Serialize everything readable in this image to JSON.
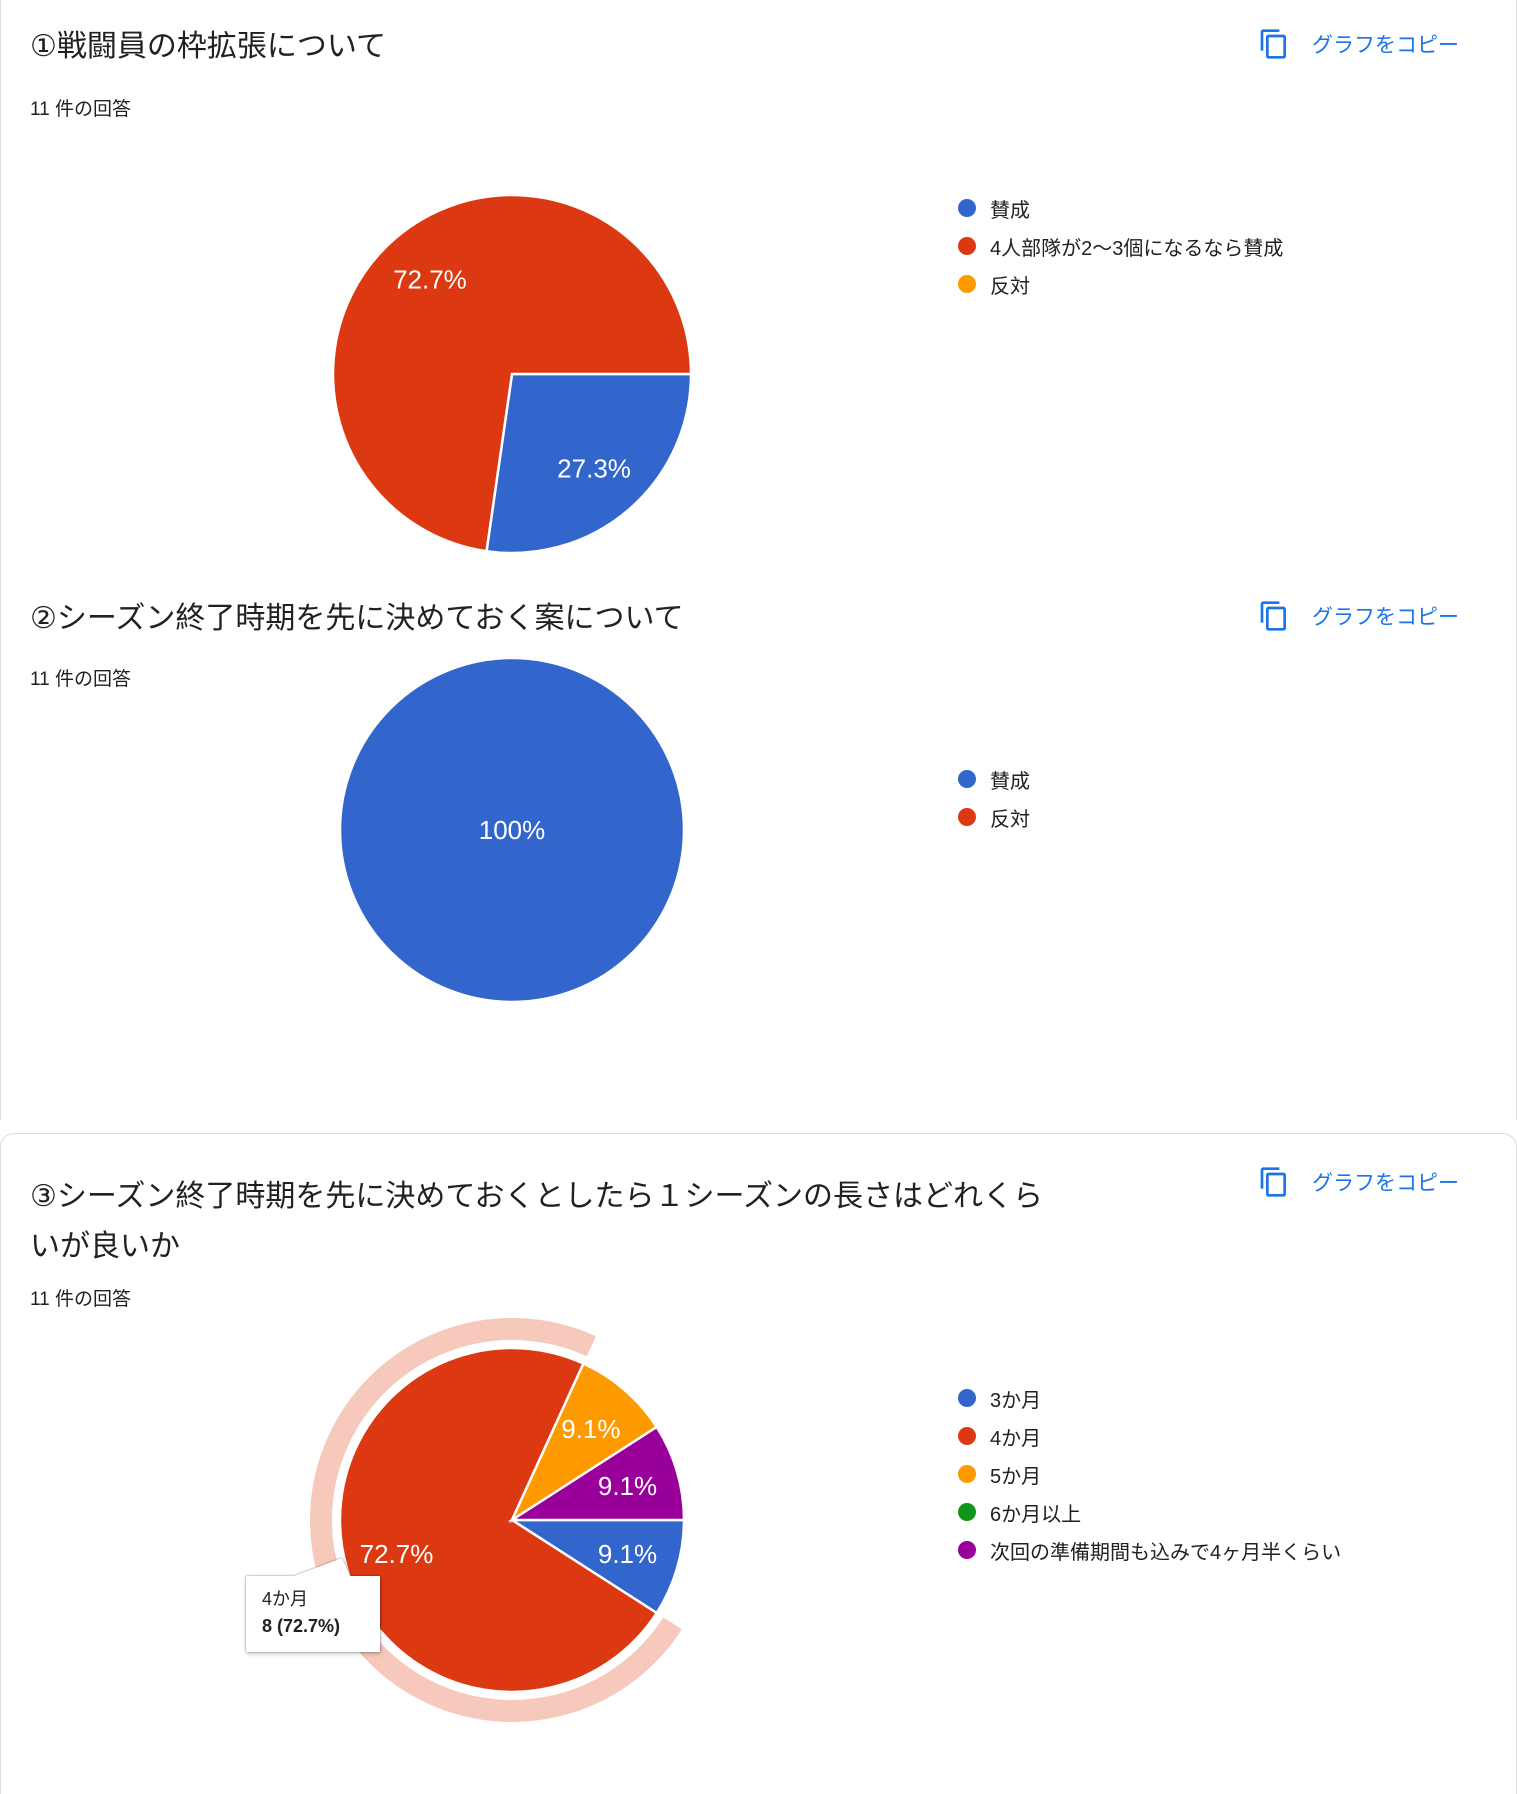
{
  "copy_button": {
    "label": "グラフをコピー",
    "color": "#1a73e8"
  },
  "palette": {
    "blue": "#3366CC",
    "red": "#DC3912",
    "orange": "#FF9900",
    "green": "#109618",
    "purple": "#990099"
  },
  "sections": [
    {
      "title": "①戦闘員の枠拡張について",
      "responses": "11 件の回答"
    },
    {
      "title": "②シーズン終了時期を先に決めておく案について",
      "responses": "11 件の回答"
    },
    {
      "title": "③シーズン終了時期を先に決めておくとしたら１シーズンの長さはどれくらいが良いか",
      "responses": "11 件の回答"
    }
  ],
  "chart_data": [
    {
      "type": "pie",
      "title": "①戦闘員の枠拡張について",
      "subtitle": "11 件の回答",
      "total_responses": 11,
      "categories": [
        "賛成",
        "4人部隊が2〜3個になるなら賛成",
        "反対"
      ],
      "values": [
        3,
        8,
        0
      ],
      "percent_labels": [
        "27.3%",
        "72.7%",
        ""
      ],
      "colors": [
        "#3366CC",
        "#DC3912",
        "#FF9900"
      ],
      "start_angle_deg": 0,
      "direction": "clockwise",
      "legend_position": "right"
    },
    {
      "type": "pie",
      "title": "②シーズン終了時期を先に決めておく案について",
      "subtitle": "11 件の回答",
      "total_responses": 11,
      "categories": [
        "賛成",
        "反対"
      ],
      "values": [
        11,
        0
      ],
      "percent_labels": [
        "100%",
        ""
      ],
      "colors": [
        "#3366CC",
        "#DC3912"
      ],
      "start_angle_deg": 0,
      "direction": "clockwise",
      "legend_position": "right"
    },
    {
      "type": "pie",
      "title": "③シーズン終了時期を先に決めておくとしたら１シーズンの長さはどれくらいが良いか",
      "subtitle": "11 件の回答",
      "total_responses": 11,
      "categories": [
        "3か月",
        "4か月",
        "5か月",
        "6か月以上",
        "次回の準備期間も込みで4ヶ月半くらい"
      ],
      "values": [
        1,
        8,
        1,
        0,
        1
      ],
      "percent_labels": [
        "9.1%",
        "72.7%",
        "9.1%",
        "",
        "9.1%"
      ],
      "colors": [
        "#3366CC",
        "#DC3912",
        "#FF9900",
        "#109618",
        "#990099"
      ],
      "start_angle_deg": 0,
      "direction": "clockwise",
      "legend_position": "right",
      "highlight": {
        "index": 1,
        "slice": "4か月",
        "ring_color": "#F6C9BC",
        "tooltip_line1": "4か月",
        "tooltip_line2": "8 (72.7%)"
      }
    }
  ]
}
